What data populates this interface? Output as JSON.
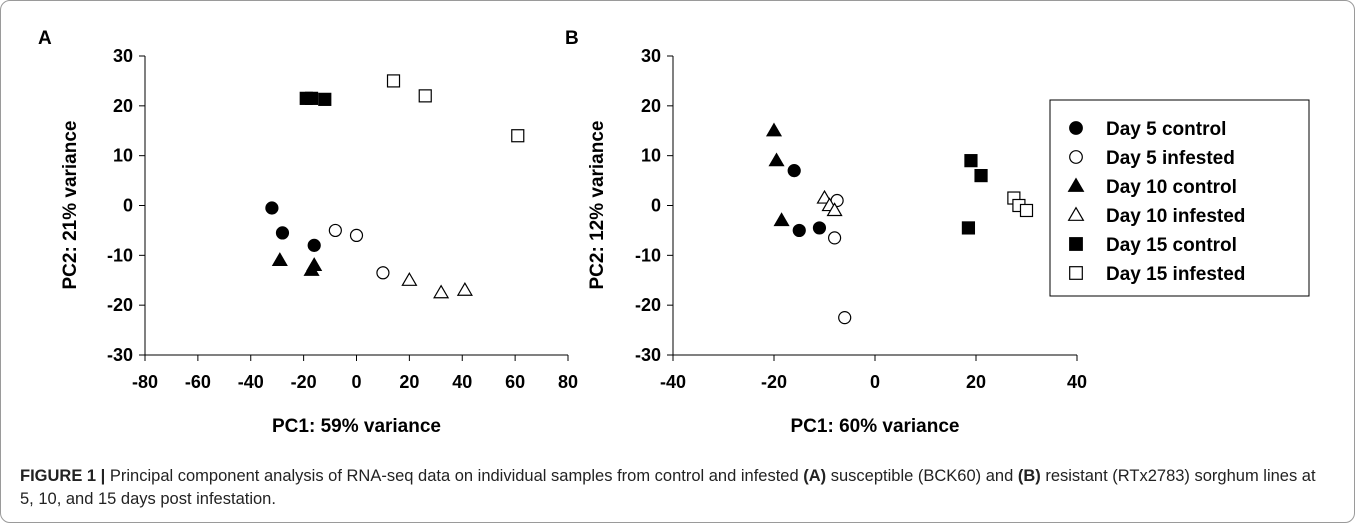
{
  "chart_data": [
    {
      "type": "scatter",
      "panel_label": "A",
      "xlabel": "PC1: 59% variance",
      "ylabel": "PC2: 21% variance",
      "xlim": [
        -80,
        80
      ],
      "ylim": [
        -30,
        30
      ],
      "xticks": [
        -80,
        -60,
        -40,
        -20,
        0,
        20,
        40,
        60,
        80
      ],
      "yticks": [
        30,
        20,
        10,
        0,
        -10,
        -20,
        -30
      ],
      "grid": false,
      "series": [
        {
          "name": "Day 5 control",
          "marker": "circle",
          "filled": true,
          "points": [
            [
              -32,
              -0.5
            ],
            [
              -28,
              -5.5
            ],
            [
              -16,
              -8
            ]
          ]
        },
        {
          "name": "Day 5 infested",
          "marker": "circle",
          "filled": false,
          "points": [
            [
              -8,
              -5
            ],
            [
              0,
              -6
            ],
            [
              10,
              -13.5
            ]
          ]
        },
        {
          "name": "Day 10 control",
          "marker": "triangle",
          "filled": true,
          "points": [
            [
              -29,
              -11
            ],
            [
              -16,
              -12
            ],
            [
              -17,
              -13
            ]
          ]
        },
        {
          "name": "Day 10 infested",
          "marker": "triangle",
          "filled": false,
          "points": [
            [
              20,
              -15
            ],
            [
              32,
              -17.5
            ],
            [
              41,
              -17
            ]
          ]
        },
        {
          "name": "Day 15 control",
          "marker": "square",
          "filled": true,
          "points": [
            [
              -19,
              21.5
            ],
            [
              -17,
              21.5
            ],
            [
              -12,
              21.3
            ]
          ]
        },
        {
          "name": "Day 15 infested",
          "marker": "square",
          "filled": false,
          "points": [
            [
              14,
              25
            ],
            [
              26,
              22
            ],
            [
              61,
              14
            ]
          ]
        }
      ]
    },
    {
      "type": "scatter",
      "panel_label": "B",
      "xlabel": "PC1: 60% variance",
      "ylabel": "PC2: 12% variance",
      "xlim": [
        -40,
        40
      ],
      "ylim": [
        -30,
        30
      ],
      "xticks": [
        -40,
        -20,
        0,
        20,
        40
      ],
      "yticks": [
        30,
        20,
        10,
        0,
        -10,
        -20,
        -30
      ],
      "grid": false,
      "legend_position": "right",
      "series": [
        {
          "name": "Day 5 control",
          "marker": "circle",
          "filled": true,
          "points": [
            [
              -16,
              7
            ],
            [
              -15,
              -5
            ],
            [
              -11,
              -4.5
            ]
          ]
        },
        {
          "name": "Day 5 infested",
          "marker": "circle",
          "filled": false,
          "points": [
            [
              -7.5,
              1
            ],
            [
              -8,
              -6.5
            ],
            [
              -6,
              -22.5
            ]
          ]
        },
        {
          "name": "Day 10 control",
          "marker": "triangle",
          "filled": true,
          "points": [
            [
              -20,
              15
            ],
            [
              -19.5,
              9
            ],
            [
              -18.5,
              -3
            ]
          ]
        },
        {
          "name": "Day 10 infested",
          "marker": "triangle",
          "filled": false,
          "points": [
            [
              -10,
              1.5
            ],
            [
              -9,
              0
            ],
            [
              -8,
              -1
            ]
          ]
        },
        {
          "name": "Day 15 control",
          "marker": "square",
          "filled": true,
          "points": [
            [
              19,
              9
            ],
            [
              21,
              6
            ],
            [
              18.5,
              -4.5
            ]
          ]
        },
        {
          "name": "Day 15 infested",
          "marker": "square",
          "filled": false,
          "points": [
            [
              27.5,
              1.5
            ],
            [
              28.5,
              0
            ],
            [
              30,
              -1
            ]
          ]
        }
      ]
    }
  ],
  "caption": {
    "label": "FIGURE 1 |",
    "text_1": " Principal component analysis of RNA-seq data on individual samples from control and infested ",
    "bold_a": "(A)",
    "text_2": " susceptible (BCK60) and ",
    "bold_b": "(B)",
    "text_3": " resistant (RTx2783) sorghum lines at 5, 10, and 15 days post infestation."
  }
}
